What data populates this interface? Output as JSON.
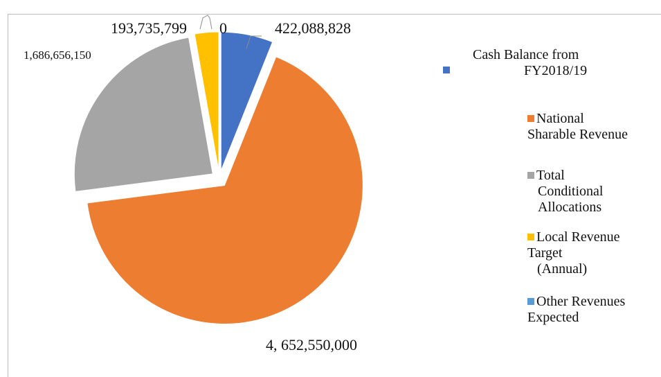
{
  "chart_data": {
    "type": "pie",
    "exploded": true,
    "slices": [
      {
        "name": "Cash Balance from FY2018/19",
        "value": 422088828,
        "label": "422,088,828",
        "color": "#4472C4"
      },
      {
        "name": "National Sharable Revenue",
        "value": 4652550000,
        "label": "4, 652,550,000",
        "color": "#ED7D31"
      },
      {
        "name": "Total Conditional Allocations",
        "value": 1686656150,
        "label": "1,686,656,150",
        "color": "#A5A5A5"
      },
      {
        "name": "Local Revenue Target (Annual)",
        "value": 193735799,
        "label": "193,735,799",
        "color": "#FFC000"
      },
      {
        "name": "Other Revenues Expected",
        "value": 0,
        "label": "0",
        "color": "#5B9BD5"
      }
    ]
  },
  "legend": {
    "cash": {
      "line1": "Cash Balance from",
      "line2": "FY2018/19"
    },
    "national": {
      "line1": "National",
      "line2": "Sharable Revenue"
    },
    "conditional": {
      "line1": "Total",
      "line2": "Conditional",
      "line3": "Allocations"
    },
    "local": {
      "line1": "Local Revenue",
      "line2": "Target",
      "line3": "(Annual)"
    },
    "other": {
      "line1": "Other Revenues",
      "line2": "Expected"
    }
  }
}
